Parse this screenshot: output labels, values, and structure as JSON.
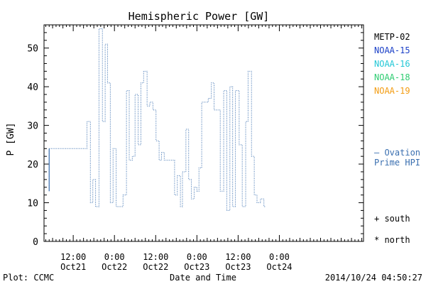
{
  "chart_data": {
    "type": "line",
    "title": "Hemispheric Power [GW]",
    "xlabel": "Date and Time",
    "ylabel": "P [GW]",
    "ylim": [
      0,
      56
    ],
    "yticks": [
      0,
      10,
      20,
      30,
      40,
      50
    ],
    "x_unit": "hours relative to 2014/10/21 00:00 UT",
    "xlim": [
      3.5,
      96.5
    ],
    "xticks": [
      {
        "x": 12,
        "time": "12:00",
        "date": "Oct21"
      },
      {
        "x": 24,
        "time": "0:00",
        "date": "Oct22"
      },
      {
        "x": 36,
        "time": "12:00",
        "date": "Oct22"
      },
      {
        "x": 48,
        "time": "0:00",
        "date": "Oct23"
      },
      {
        "x": 60,
        "time": "12:00",
        "date": "Oct23"
      },
      {
        "x": 72,
        "time": "0:00",
        "date": "Oct24"
      }
    ],
    "grid": false,
    "legend_position": "right",
    "legend_entries": [
      {
        "name": "METP-02",
        "color": "#000000"
      },
      {
        "name": "NOAA-15",
        "color": "#1a3fc7"
      },
      {
        "name": "NOAA-16",
        "color": "#22c7d6"
      },
      {
        "name": "NOAA-18",
        "color": "#2ecc71"
      },
      {
        "name": "NOAA-19",
        "color": "#f39c12"
      }
    ],
    "series": [
      {
        "name": "Ovation Prime HPI",
        "label_lines": [
          "— Ovation",
          "Prime HPI"
        ],
        "color": "#3a6fb0",
        "values": [
          [
            5,
            13
          ],
          [
            5,
            24
          ],
          [
            16,
            24
          ],
          [
            16,
            31
          ],
          [
            17,
            31
          ],
          [
            17,
            10
          ],
          [
            17.7,
            10
          ],
          [
            17.7,
            16
          ],
          [
            18.5,
            16
          ],
          [
            18.5,
            9
          ],
          [
            19.5,
            9
          ],
          [
            19.5,
            55
          ],
          [
            20.5,
            55
          ],
          [
            20.5,
            31
          ],
          [
            21.3,
            31
          ],
          [
            21.3,
            51
          ],
          [
            22,
            51
          ],
          [
            22,
            41
          ],
          [
            22.8,
            41
          ],
          [
            22.8,
            10
          ],
          [
            23.6,
            10
          ],
          [
            23.6,
            24
          ],
          [
            24.5,
            24
          ],
          [
            24.5,
            9
          ],
          [
            26.5,
            9
          ],
          [
            26.5,
            12
          ],
          [
            27.5,
            12
          ],
          [
            27.5,
            39
          ],
          [
            28.3,
            39
          ],
          [
            28.3,
            21
          ],
          [
            29.2,
            21
          ],
          [
            29.2,
            22
          ],
          [
            30,
            22
          ],
          [
            30,
            38
          ],
          [
            30.9,
            38
          ],
          [
            30.9,
            25
          ],
          [
            31.7,
            25
          ],
          [
            31.7,
            41
          ],
          [
            32.5,
            41
          ],
          [
            32.5,
            44
          ],
          [
            33.5,
            44
          ],
          [
            33.5,
            35
          ],
          [
            34.3,
            35
          ],
          [
            34.3,
            36
          ],
          [
            35.2,
            36
          ],
          [
            35.2,
            34
          ],
          [
            36.1,
            34
          ],
          [
            36.1,
            26
          ],
          [
            37,
            26
          ],
          [
            37,
            21
          ],
          [
            37.7,
            21
          ],
          [
            37.7,
            23
          ],
          [
            38.5,
            23
          ],
          [
            38.5,
            21
          ],
          [
            41.5,
            21
          ],
          [
            41.5,
            12
          ],
          [
            42.3,
            12
          ],
          [
            42.3,
            17
          ],
          [
            43.2,
            17
          ],
          [
            43.2,
            9
          ],
          [
            43.8,
            9
          ],
          [
            43.8,
            18
          ],
          [
            44.8,
            18
          ],
          [
            44.8,
            29
          ],
          [
            45.6,
            29
          ],
          [
            45.6,
            16
          ],
          [
            46.4,
            16
          ],
          [
            46.4,
            11
          ],
          [
            47.2,
            11
          ],
          [
            47.2,
            14
          ],
          [
            48,
            14
          ],
          [
            48,
            13
          ],
          [
            48.6,
            13
          ],
          [
            48.6,
            19
          ],
          [
            49.4,
            19
          ],
          [
            49.4,
            36
          ],
          [
            51.3,
            36
          ],
          [
            51.3,
            37
          ],
          [
            52.2,
            37
          ],
          [
            52.2,
            41
          ],
          [
            53,
            41
          ],
          [
            53,
            34
          ],
          [
            54.8,
            34
          ],
          [
            54.8,
            13
          ],
          [
            55.8,
            13
          ],
          [
            55.8,
            39
          ],
          [
            56.7,
            39
          ],
          [
            56.7,
            8
          ],
          [
            57.6,
            8
          ],
          [
            57.6,
            40
          ],
          [
            58.4,
            40
          ],
          [
            58.4,
            9
          ],
          [
            59.2,
            9
          ],
          [
            59.2,
            39
          ],
          [
            60.3,
            39
          ],
          [
            60.3,
            25
          ],
          [
            61.2,
            25
          ],
          [
            61.2,
            9
          ],
          [
            62.2,
            9
          ],
          [
            62.2,
            31
          ],
          [
            62.9,
            31
          ],
          [
            62.9,
            44
          ],
          [
            63.9,
            44
          ],
          [
            63.9,
            22
          ],
          [
            64.7,
            22
          ],
          [
            64.7,
            12
          ],
          [
            65.5,
            12
          ],
          [
            65.5,
            10
          ],
          [
            66.5,
            10
          ],
          [
            66.5,
            11
          ],
          [
            67.5,
            11
          ],
          [
            67.5,
            9
          ],
          [
            68,
            9
          ]
        ]
      }
    ],
    "annotations": {
      "south_marker": "+ south",
      "north_marker": "* north",
      "plot_credit": "Plot: CCMC",
      "timestamp": "2014/10/24 04:50:27"
    }
  }
}
